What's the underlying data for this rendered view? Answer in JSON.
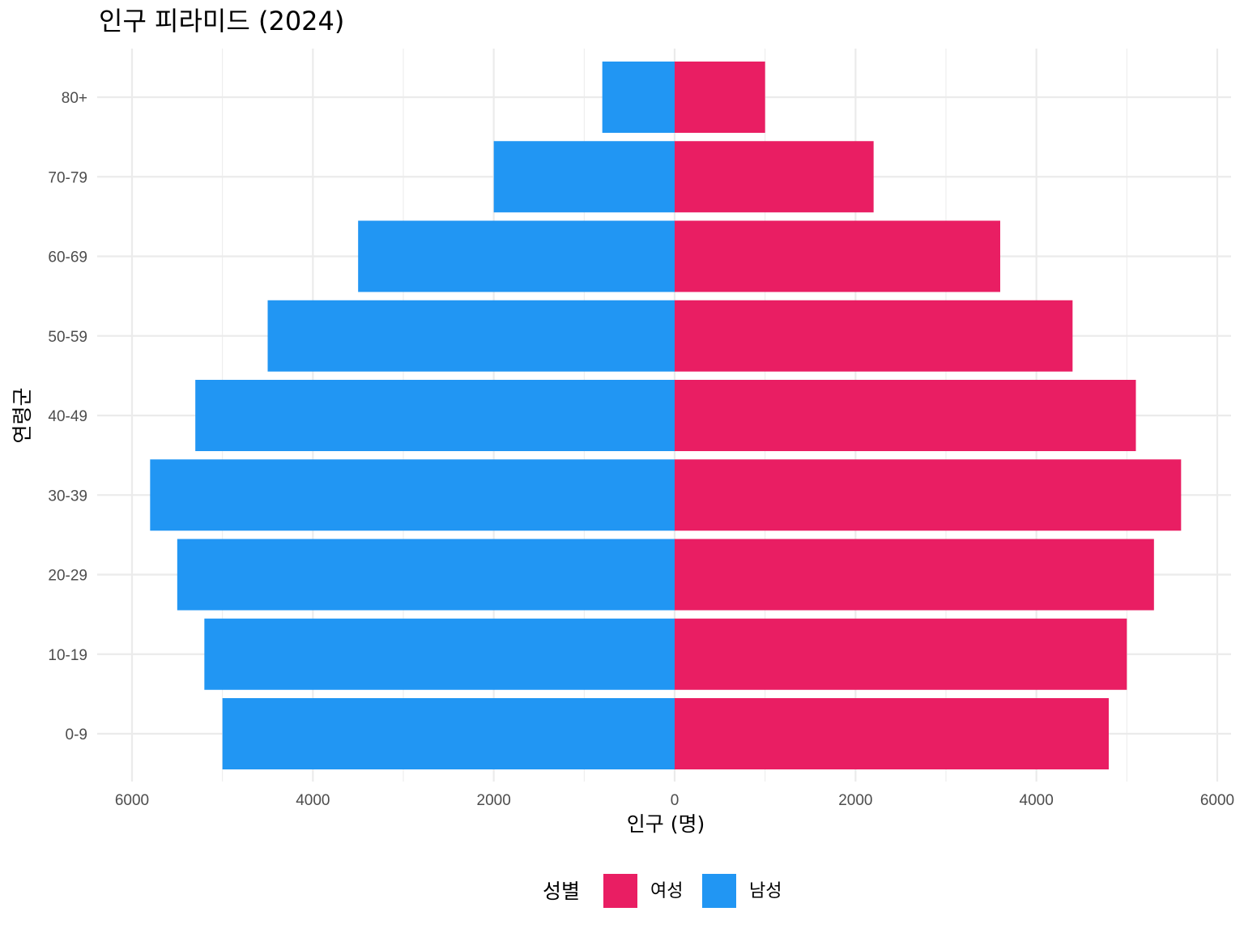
{
  "chart_data": {
    "type": "bar",
    "orientation": "horizontal-pyramid",
    "title": "인구 피라미드 (2024)",
    "xlabel": "인구 (명)",
    "ylabel": "연령군",
    "categories": [
      "0-9",
      "10-19",
      "20-29",
      "30-39",
      "40-49",
      "50-59",
      "60-69",
      "70-79",
      "80+"
    ],
    "series": [
      {
        "name": "여성",
        "side": "right",
        "color": "#E91E63",
        "values": [
          4800,
          5000,
          5300,
          5600,
          5100,
          4400,
          3600,
          2200,
          1000
        ]
      },
      {
        "name": "남성",
        "side": "left",
        "color": "#2196F3",
        "values": [
          5000,
          5200,
          5500,
          5800,
          5300,
          4500,
          3500,
          2000,
          800
        ]
      }
    ],
    "xlim": [
      -6000,
      6000
    ],
    "xticks": [
      -6000,
      -4000,
      -2000,
      0,
      2000,
      4000,
      6000
    ],
    "xtick_labels": [
      "6000",
      "4000",
      "2000",
      "0",
      "2000",
      "4000",
      "6000"
    ],
    "grid": true,
    "legend": {
      "title": "성별",
      "placement": "bottom",
      "entries": [
        "여성",
        "남성"
      ]
    }
  }
}
